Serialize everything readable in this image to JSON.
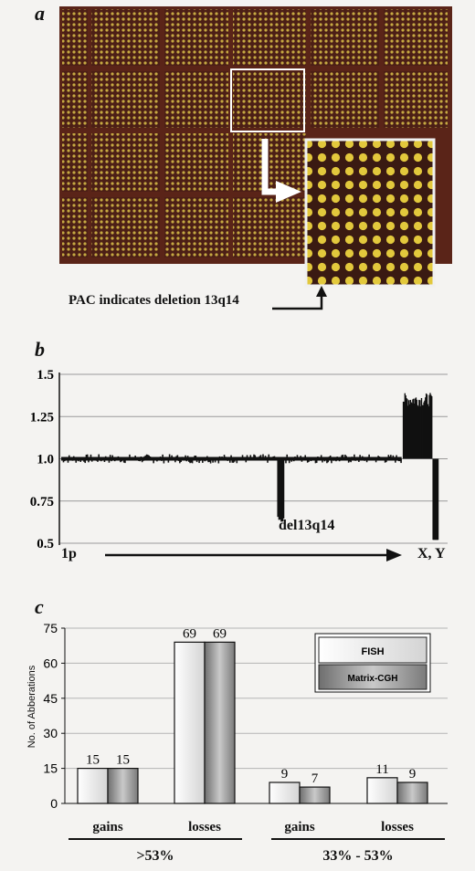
{
  "panel_a": {
    "letter": "a",
    "caption": "PAC indicates deletion 13q14"
  },
  "panel_b": {
    "letter": "b",
    "annotation": "del13q14",
    "x_start_label": "1p",
    "x_end_label": "X, Y"
  },
  "panel_c": {
    "letter": "c",
    "group_labels": [
      ">53%",
      "33% - 53%"
    ]
  },
  "chart_data": [
    {
      "type": "line",
      "yticks": [
        "1.5",
        "1.25",
        "1.0",
        "0.75",
        "0.5"
      ],
      "ylim": [
        0.5,
        1.5
      ],
      "grid": true,
      "x_start_label": "1p",
      "x_end_label": "X, Y",
      "annotations": [
        "del13q14"
      ],
      "series": [
        {
          "values_summary": "ratio profile ~1.0 across autosomes; dip to ~0.6 at 13q14; X ~1.3; Y ~0.5",
          "points": [
            [
              0,
              0.98
            ],
            [
              10,
              1.01
            ],
            [
              20,
              0.99
            ],
            [
              30,
              1.02
            ],
            [
              40,
              0.97
            ],
            [
              50,
              1.0
            ],
            [
              60,
              1.03
            ],
            [
              70,
              0.98
            ],
            [
              80,
              1.0
            ],
            [
              90,
              1.01
            ],
            [
              100,
              0.99
            ],
            [
              110,
              1.0
            ],
            [
              120,
              1.02
            ],
            [
              130,
              0.98
            ],
            [
              140,
              1.0
            ],
            [
              150,
              1.01
            ],
            [
              160,
              0.99
            ],
            [
              170,
              1.0
            ],
            [
              180,
              0.98
            ],
            [
              190,
              1.01
            ],
            [
              200,
              1.0
            ],
            [
              210,
              0.99
            ],
            [
              220,
              1.02
            ],
            [
              230,
              1.0
            ],
            [
              240,
              0.99
            ],
            [
              250,
              0.62
            ],
            [
              260,
              1.0
            ],
            [
              270,
              1.01
            ],
            [
              280,
              0.98
            ],
            [
              290,
              1.0
            ],
            [
              300,
              1.02
            ],
            [
              310,
              0.99
            ],
            [
              320,
              1.0
            ],
            [
              330,
              1.01
            ],
            [
              340,
              0.98
            ],
            [
              350,
              1.0
            ],
            [
              360,
              0.99
            ],
            [
              370,
              1.01
            ],
            [
              380,
              1.0
            ],
            [
              390,
              1.3
            ],
            [
              400,
              1.35
            ],
            [
              410,
              1.32
            ],
            [
              420,
              1.33
            ],
            [
              430,
              0.52
            ]
          ]
        }
      ]
    },
    {
      "type": "bar",
      "ylabel": "No. of Abberations",
      "ylim": [
        0,
        75
      ],
      "yticks": [
        0,
        15,
        30,
        45,
        60,
        75
      ],
      "grid": true,
      "legend_position": "top-right",
      "categories": [
        "gains",
        "losses",
        "gains",
        "losses"
      ],
      "groups": [
        ">53%",
        ">53%",
        "33% - 53%",
        "33% - 53%"
      ],
      "series": [
        {
          "name": "FISH",
          "color": "#f2f2f2",
          "values": [
            15,
            69,
            9,
            11
          ]
        },
        {
          "name": "Matrix-CGH",
          "color": "#a8a8a8",
          "values": [
            15,
            69,
            7,
            9
          ]
        }
      ]
    }
  ]
}
